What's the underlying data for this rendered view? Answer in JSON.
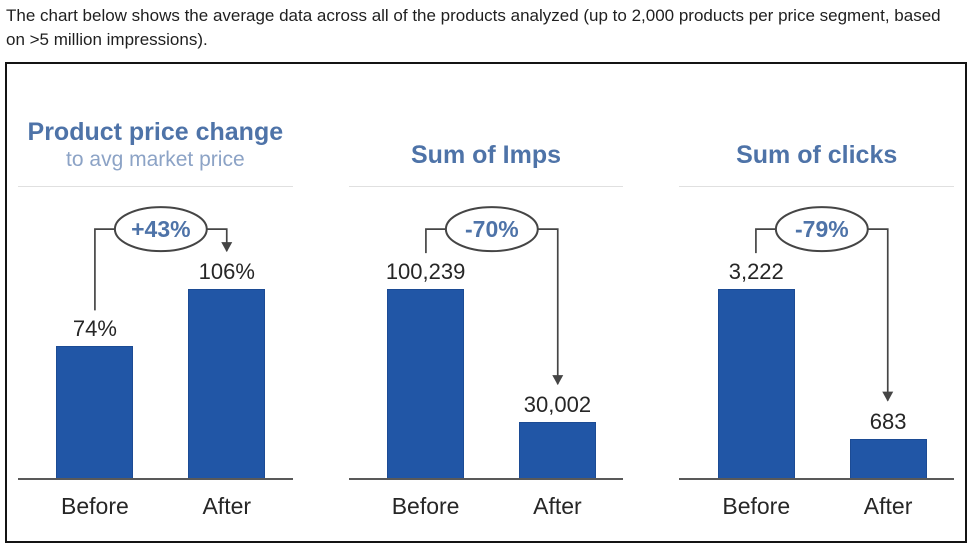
{
  "intro": {
    "text": "The chart below shows the average data across all of the products analyzed (up to 2,000 products per price segment, based on >5 million impressions)."
  },
  "colors": {
    "bar_fill": "#2156A6",
    "bar_border": "#1C4B94",
    "title_text": "#4E73A8",
    "subtitle_text": "#8CA3C6",
    "change_text": "#4E73A8",
    "connector": "#454545",
    "axis": "#595959",
    "label_text": "#262626",
    "frame_border": "#141414",
    "divider": "#e0e0e0"
  },
  "chart_data": [
    {
      "type": "bar",
      "title": "Product price change",
      "subtitle": "to avg market price",
      "categories": [
        "Before",
        "After"
      ],
      "values": [
        74,
        106
      ],
      "value_labels": [
        "74%",
        "106%"
      ],
      "change_annotation": "+43%",
      "legend_position": "none",
      "grid": false
    },
    {
      "type": "bar",
      "title": "Sum of Imps",
      "categories": [
        "Before",
        "After"
      ],
      "values": [
        100239,
        30002
      ],
      "value_labels": [
        "100,239",
        "30,002"
      ],
      "change_annotation": "-70%",
      "legend_position": "none",
      "grid": false
    },
    {
      "type": "bar",
      "title": "Sum of clicks",
      "categories": [
        "Before",
        "After"
      ],
      "values": [
        3222,
        683
      ],
      "value_labels": [
        "3,222",
        "683"
      ],
      "change_annotation": "-79%",
      "legend_position": "none",
      "grid": false
    }
  ]
}
